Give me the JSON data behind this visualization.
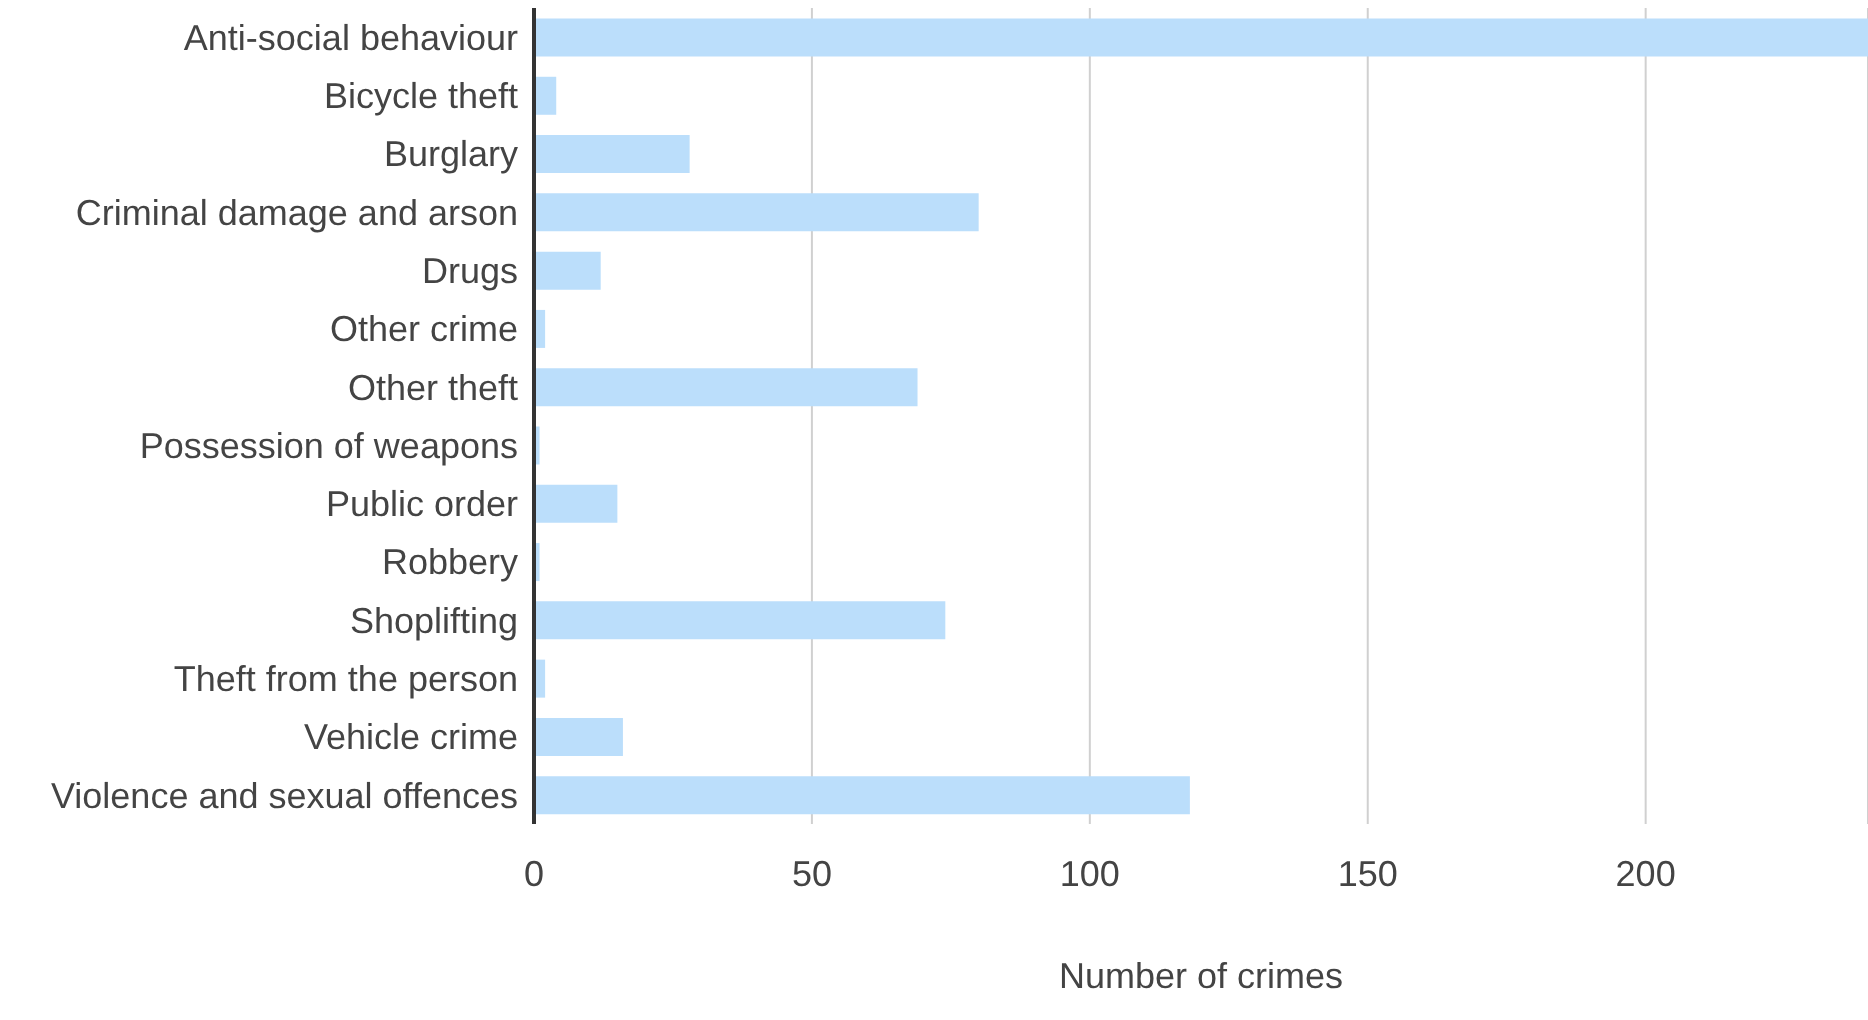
{
  "chart_data": {
    "type": "bar",
    "orientation": "horizontal",
    "xlabel": "Number of crimes",
    "categories": [
      "Anti-social behaviour",
      "Bicycle theft",
      "Burglary",
      "Criminal damage and arson",
      "Drugs",
      "Other crime",
      "Other theft",
      "Possession of weapons",
      "Public order",
      "Robbery",
      "Shoplifting",
      "Theft from the person",
      "Vehicle crime",
      "Violence and sexual offences"
    ],
    "values": [
      240,
      4,
      28,
      80,
      12,
      2,
      69,
      1,
      15,
      1,
      74,
      2,
      16,
      118
    ],
    "color": "#bbdefb",
    "xlim": [
      0,
      240
    ],
    "xticks": [
      0,
      50,
      100,
      150,
      200
    ],
    "grid": "x"
  }
}
